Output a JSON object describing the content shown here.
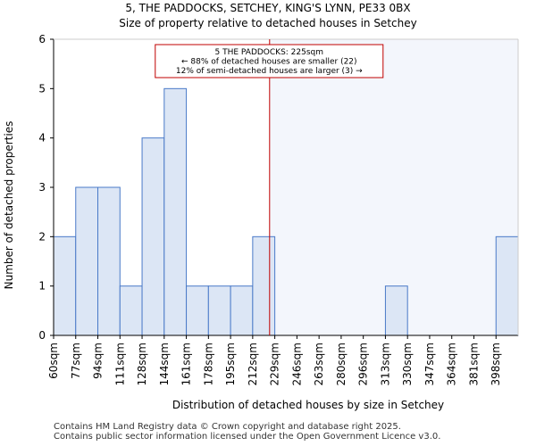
{
  "chart_data": {
    "type": "bar",
    "title": "5, THE PADDOCKS, SETCHEY, KING'S LYNN, PE33 0BX",
    "subtitle": "Size of property relative to detached houses in Setchey",
    "xlabel": "Distribution of detached houses by size in Setchey",
    "ylabel": "Number of detached properties",
    "categories": [
      "60sqm",
      "77sqm",
      "94sqm",
      "111sqm",
      "128sqm",
      "144sqm",
      "161sqm",
      "178sqm",
      "195sqm",
      "212sqm",
      "229sqm",
      "246sqm",
      "263sqm",
      "280sqm",
      "296sqm",
      "313sqm",
      "330sqm",
      "347sqm",
      "364sqm",
      "381sqm",
      "398sqm"
    ],
    "values": [
      2,
      3,
      3,
      1,
      4,
      5,
      1,
      1,
      1,
      2,
      0,
      0,
      0,
      0,
      0,
      1,
      0,
      0,
      0,
      0,
      2
    ],
    "ylim": [
      0,
      6
    ],
    "yticks": [
      0,
      1,
      2,
      3,
      4,
      5,
      6
    ],
    "marker": {
      "value_sqm": 225,
      "annotation_lines": [
        "5 THE PADDOCKS: 225sqm",
        "← 88% of detached houses are smaller (22)",
        "12% of semi-detached houses are larger (3) →"
      ]
    },
    "colors": {
      "bar_fill": "#dce6f5",
      "bar_edge": "#4a7ac8",
      "marker_line": "#c00000",
      "annotation_border": "#c00000",
      "highlight_bg": "#f3f6fc"
    }
  },
  "footer": {
    "line1": "Contains HM Land Registry data © Crown copyright and database right 2025.",
    "line2": "Contains public sector information licensed under the Open Government Licence v3.0."
  }
}
